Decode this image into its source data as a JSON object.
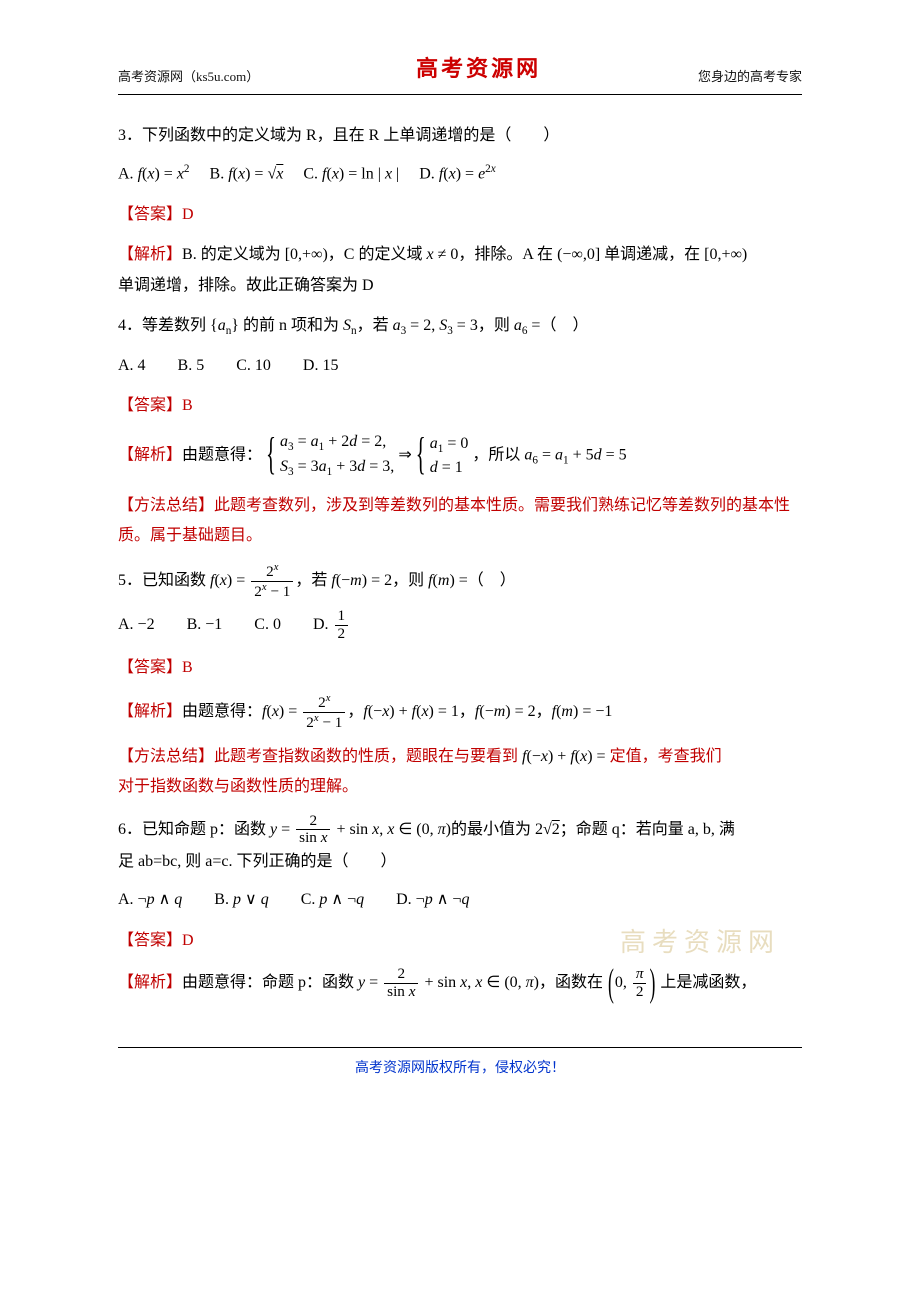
{
  "colors": {
    "text": "#000000",
    "accent": "#c00000",
    "footer_link": "#0033cc",
    "watermark": "#bfa04a",
    "background": "#ffffff"
  },
  "typography": {
    "body_font": "SimSun / Songti",
    "body_size_pt": 12,
    "header_logo_font": "KaiTi",
    "header_logo_size_pt": 16,
    "math_font": "Times New Roman italic"
  },
  "header": {
    "left": "高考资源网（ks5u.com）",
    "center": "高考资源网",
    "right": "您身边的高考专家"
  },
  "watermark": "高考资源网",
  "footer": "高考资源网版权所有，侵权必究！",
  "questions": [
    {
      "id": "q3",
      "stem": "3．下列函数中的定义域为 R，且在 R 上单调递增的是（　　）",
      "options": {
        "A": "f(x) = x^2",
        "B": "f(x) = √x",
        "C": "f(x) = ln|x|",
        "D": "f(x) = e^{2x}"
      },
      "answer_label": "【答案】D",
      "explain_label": "【解析】",
      "explain_body": "B. 的定义域为 [0,+∞)，C 的定义域 x ≠ 0，排除。A 在 (−∞,0] 单调递减，在 [0,+∞) 单调递增，排除。故此正确答案为 D"
    },
    {
      "id": "q4",
      "stem_pre": "4．等差数列 {aₙ} 的前 n 项和为 ",
      "stem_mid1": "Sₙ",
      "stem_mid2": "，若 ",
      "stem_cond": "a₃ = 2, S₃ = 3",
      "stem_post": "，则 ",
      "stem_ask": "a₆ = (　)",
      "options_line": "A. 4　　B. 5　　C. 10　　D. 15",
      "answer_label": "【答案】B",
      "explain_label": "【解析】",
      "explain_pre": "由题意得：",
      "sys_row1": "a₃ = a₁ + 2d = 2,",
      "sys_row2": "S₃ = 3a₁ + 3d = 3,",
      "explain_arrow": " ⇒ ",
      "sys2_row1": "a₁ = 0",
      "sys2_row2": "d = 1",
      "explain_post": "，所以 a₆ = a₁ + 5d = 5",
      "method_label": "【方法总结】",
      "method_text": "此题考查数列，涉及到等差数列的基本性质。需要我们熟练记忆等差数列的基本性质。属于基础题目。"
    },
    {
      "id": "q5",
      "stem_pre": "5．已知函数 ",
      "func_def_lhs": "f(x) = ",
      "func_frac_num": "2ˣ",
      "func_frac_den": "2ˣ − 1",
      "stem_mid": "，若 ",
      "cond": "f(−m) = 2",
      "stem_post": "，则 ",
      "ask": "f(m) = (　)",
      "options_pre": "A. −2　　B. −1　　C. 0　　D. ",
      "optD_num": "1",
      "optD_den": "2",
      "answer_label": "【答案】B",
      "explain_label": "【解析】",
      "explain_pre": "由题意得：",
      "exp1_lhs": "f(x) = ",
      "exp1_num": "2ˣ",
      "exp1_den": "2ˣ − 1",
      "exp2": "，f(−x) + f(x) = 1，f(−m) = 2，f(m) = −1",
      "method_label": "【方法总结】",
      "method_pre": "此题考查指数函数的性质，题眼在与要看到 ",
      "method_math": "f(−x) + f(x) = ",
      "method_const": "定值",
      "method_post": "，考查我们对于指数函数与函数性质的理解。"
    },
    {
      "id": "q6",
      "stem_pre": "6．已知命题 p：函数 ",
      "p_y_eq": "y = ",
      "p_frac_num": "2",
      "p_frac_den": "sin x",
      "p_plus": " + sin x, x ∈ (0, π)",
      "p_min": " 的最小值为 ",
      "p_val": "2√2",
      "stem_mid": "；命题 q：若向量 a, b, 满足 ab=bc, 则 a=c. 下列正确的是（　　）",
      "options_line": "A. ¬p ∧ q　　B. p ∨ q　　C. p ∧ ¬q　　D. ¬p ∧ ¬q",
      "answer_label": "【答案】D",
      "explain_label": "【解析】",
      "explain_pre": "由题意得：命题 p：函数 ",
      "e_y_eq": "y = ",
      "e_frac_num": "2",
      "e_frac_den": "sin x",
      "e_plus": " + sin x, x ∈ (0, π)",
      "e_post1": "，函数在 ",
      "e_int_open": "(",
      "e_int_a": "0, ",
      "e_int_num": "π",
      "e_int_den": "2",
      "e_int_close": ")",
      "e_post2": " 上是减函数，"
    }
  ]
}
